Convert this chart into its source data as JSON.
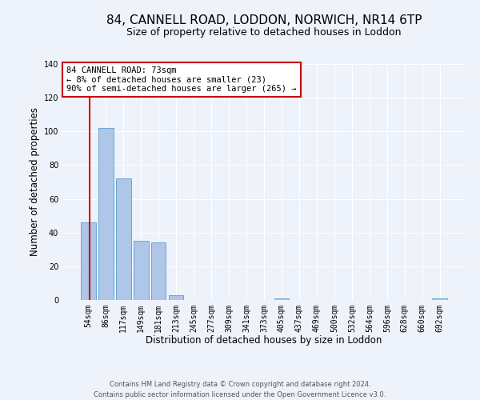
{
  "title": "84, CANNELL ROAD, LODDON, NORWICH, NR14 6TP",
  "subtitle": "Size of property relative to detached houses in Loddon",
  "xlabel": "Distribution of detached houses by size in Loddon",
  "ylabel": "Number of detached properties",
  "bar_labels": [
    "54sqm",
    "86sqm",
    "117sqm",
    "149sqm",
    "181sqm",
    "213sqm",
    "245sqm",
    "277sqm",
    "309sqm",
    "341sqm",
    "373sqm",
    "405sqm",
    "437sqm",
    "469sqm",
    "500sqm",
    "532sqm",
    "564sqm",
    "596sqm",
    "628sqm",
    "660sqm",
    "692sqm"
  ],
  "bar_values": [
    46,
    102,
    72,
    35,
    34,
    3,
    0,
    0,
    0,
    0,
    0,
    1,
    0,
    0,
    0,
    0,
    0,
    0,
    0,
    0,
    1
  ],
  "bar_color": "#aec6e8",
  "bar_edge_color": "#5a9fd4",
  "ylim": [
    0,
    140
  ],
  "yticks": [
    0,
    20,
    40,
    60,
    80,
    100,
    120,
    140
  ],
  "annotation_box_text": "84 CANNELL ROAD: 73sqm\n← 8% of detached houses are smaller (23)\n90% of semi-detached houses are larger (265) →",
  "annotation_box_color": "#ffffff",
  "annotation_box_edge_color": "#cc0000",
  "property_line_color": "#cc0000",
  "footer_line1": "Contains HM Land Registry data © Crown copyright and database right 2024.",
  "footer_line2": "Contains public sector information licensed under the Open Government Licence v3.0.",
  "background_color": "#eef2fa",
  "grid_color": "#ffffff",
  "title_fontsize": 11,
  "subtitle_fontsize": 9,
  "axis_label_fontsize": 8.5,
  "tick_fontsize": 7,
  "footer_fontsize": 6,
  "annotation_fontsize": 7.5
}
